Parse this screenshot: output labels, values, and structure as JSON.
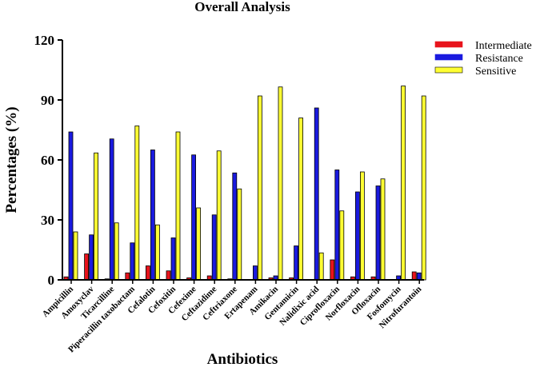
{
  "chart_data": {
    "type": "bar",
    "title": "Overall Analysis",
    "xlabel": "Antibiotics",
    "ylabel": "Percentages (%)",
    "ylim": [
      0,
      120
    ],
    "yticks": [
      "0",
      "30",
      "60",
      "90",
      "120"
    ],
    "grid": false,
    "legend_position": "top-right",
    "categories": [
      "Ampicillin",
      "Amoxyclav",
      "Ticarcilline",
      "Piperacillin taxobactam",
      "Cefalotin",
      "Cefoxitin",
      "Cefexime",
      "Ceftazidime",
      "Ceftriaxone",
      "Ertapenam",
      "Amikacin",
      "Gentamicin",
      "Nalidixic acid",
      "Ciprofloxacin",
      "Norfloxacin",
      "Ofloxacin",
      "Fosfomycin",
      "Nitrofurantoin"
    ],
    "series": [
      {
        "name": "Intermediate",
        "color": "#e8141c",
        "values": [
          1.5,
          13,
          0.5,
          3.5,
          7,
          4.5,
          1,
          2,
          0.5,
          0,
          1,
          1,
          0,
          10,
          1.5,
          1.5,
          0,
          4
        ]
      },
      {
        "name": "Resistance",
        "color": "#1a1adf",
        "values": [
          74,
          22.5,
          70.5,
          18.5,
          65,
          21,
          62.5,
          32.5,
          53.5,
          7,
          2,
          17,
          86,
          55,
          44,
          47,
          2,
          3.5
        ]
      },
      {
        "name": "Sensitive",
        "color": "#ffff33",
        "values": [
          24,
          63.5,
          28.5,
          77,
          27.5,
          74,
          36,
          64.5,
          45.5,
          92,
          96.5,
          81,
          13.5,
          34.5,
          54,
          50.5,
          97,
          92
        ]
      }
    ]
  }
}
